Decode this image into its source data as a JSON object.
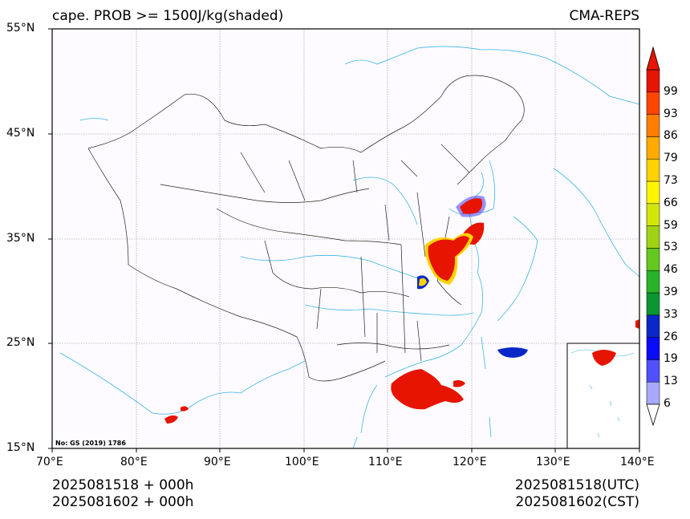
{
  "title": {
    "left": "cape. PROB >= 1500J/kg(shaded)",
    "right": "CMA-REPS"
  },
  "map": {
    "lon_min": 70,
    "lon_max": 140,
    "lat_min": 15,
    "lat_max": 55,
    "lon_ticks": [
      "70°E",
      "80°E",
      "90°E",
      "100°E",
      "110°E",
      "120°E",
      "130°E",
      "140°E"
    ],
    "lat_ticks": [
      "55°N",
      "45°N",
      "35°N",
      "25°N",
      "15°N"
    ],
    "map_number": "No: GS (2019) 1786"
  },
  "colorbar": {
    "labels": [
      "6",
      "13",
      "19",
      "26",
      "33",
      "39",
      "46",
      "53",
      "59",
      "66",
      "73",
      "79",
      "86",
      "93",
      "99"
    ],
    "colors": [
      "#a8a8ff",
      "#5050ff",
      "#0a0aff",
      "#0a28c8",
      "#0a9632",
      "#28b428",
      "#64c81e",
      "#a0d214",
      "#d2e60a",
      "#fff500",
      "#ffd200",
      "#ffaa00",
      "#ff7d00",
      "#ff4600",
      "#e61400"
    ]
  },
  "footer": {
    "left_line1": "2025081518  +  000h",
    "left_line2": "2025081602  +  000h",
    "right_line1": "2025081518(UTC)",
    "right_line2": "2025081602(CST)"
  }
}
